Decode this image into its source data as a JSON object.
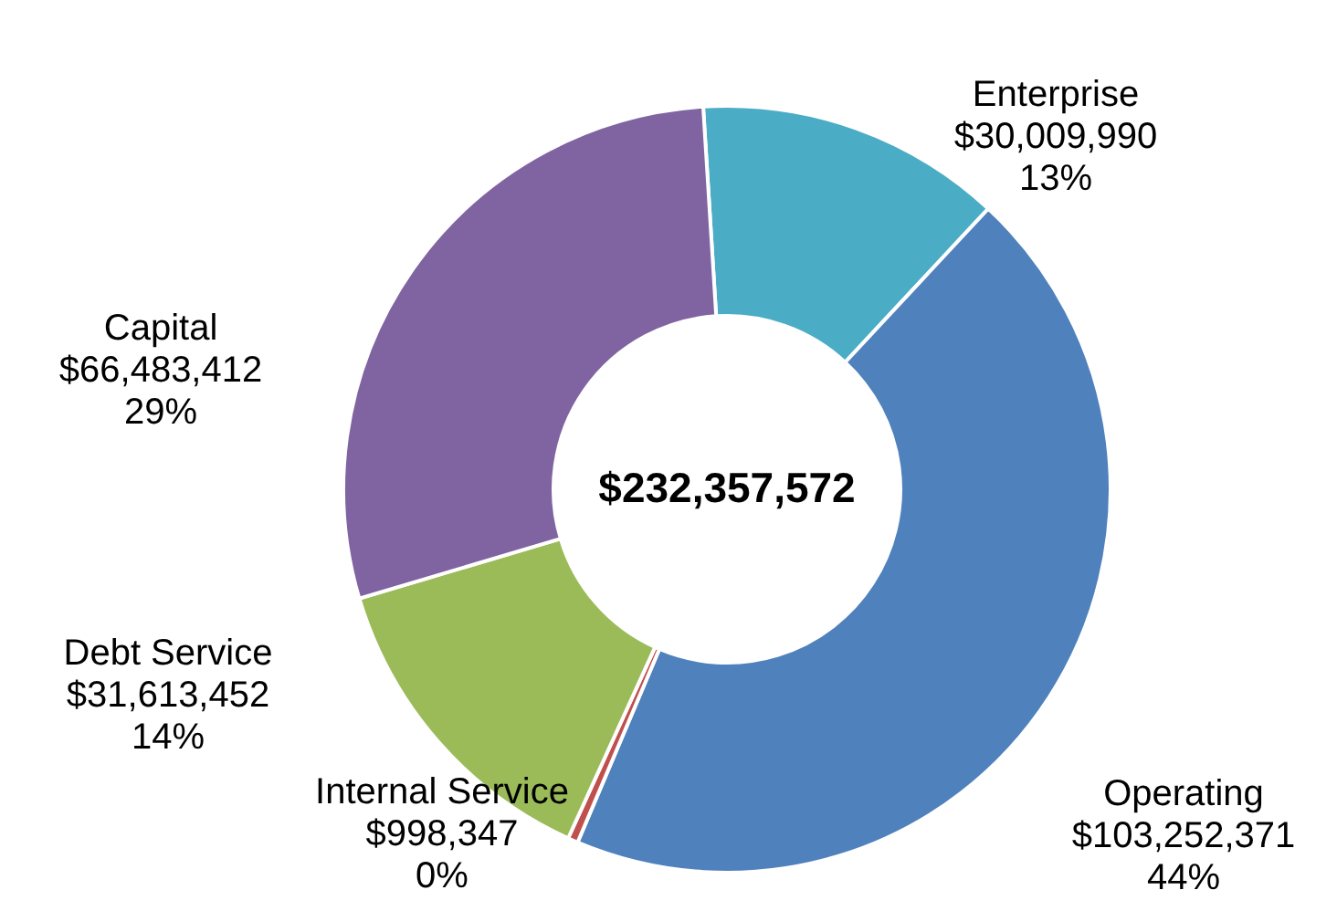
{
  "chart_data": {
    "type": "donut",
    "categories": [
      "Enterprise",
      "Operating",
      "Internal Service",
      "Debt Service",
      "Capital"
    ],
    "values": [
      30009990,
      103252371,
      998347,
      31613452,
      66483412
    ],
    "colors": [
      "#4bacc6",
      "#4f81bd",
      "#c0504d",
      "#9bbb59",
      "#8064a2"
    ],
    "value_labels": [
      "$30,009,990\n13%",
      "$103,252,371\n44%",
      "$998,347\n0%",
      "$31,613,452\n14%",
      "$66,483,412\n29%"
    ],
    "annotations": [
      "$232,357,572"
    ]
  }
}
